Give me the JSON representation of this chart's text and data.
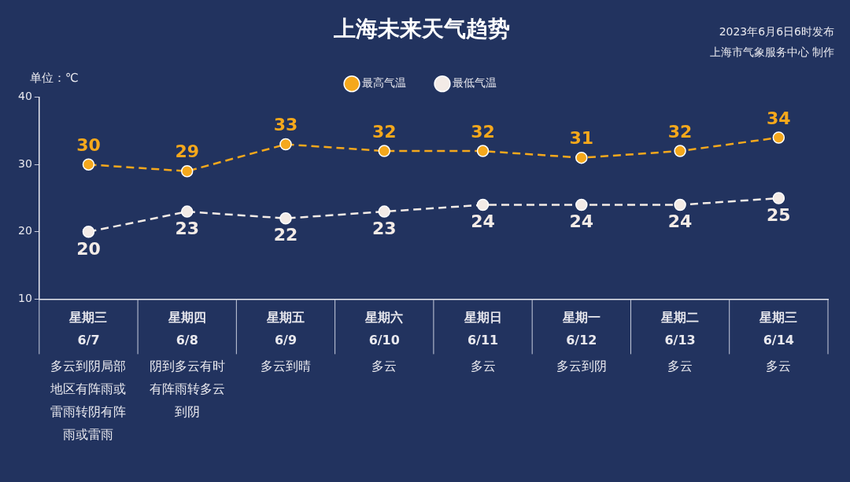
{
  "chart_data": {
    "type": "line",
    "title": "上海未来天气趋势",
    "ylabel": "单位：℃",
    "categories": [
      "星期三\n6/7",
      "星期四\n6/8",
      "星期五\n6/9",
      "星期六\n6/10",
      "星期日\n6/11",
      "星期一\n6/12",
      "星期二\n6/13",
      "星期三\n6/14"
    ],
    "series": [
      {
        "name": "最高气温",
        "color": "#f5a81c",
        "values": [
          30,
          29,
          33,
          32,
          32,
          31,
          32,
          34
        ]
      },
      {
        "name": "最低气温",
        "color": "#f3ebe6",
        "values": [
          20,
          23,
          22,
          23,
          24,
          24,
          24,
          25
        ]
      }
    ],
    "ylim": [
      10,
      40
    ],
    "yticks": [
      10,
      20,
      30,
      40
    ],
    "grid": false,
    "legend": "top",
    "marker": "circle",
    "line_style": "dashed",
    "data_labels": true,
    "annotations": [
      "2023年6月6日6时发布",
      "上海市气象服务中心 制作",
      "多云到阴局部地区有阵雨或雷雨转阴有阵雨或雷雨",
      "阴到多云有时有阵雨转多云到阴",
      "多云到晴",
      "多云",
      "多云",
      "多云到阴",
      "多云",
      "多云"
    ]
  }
}
